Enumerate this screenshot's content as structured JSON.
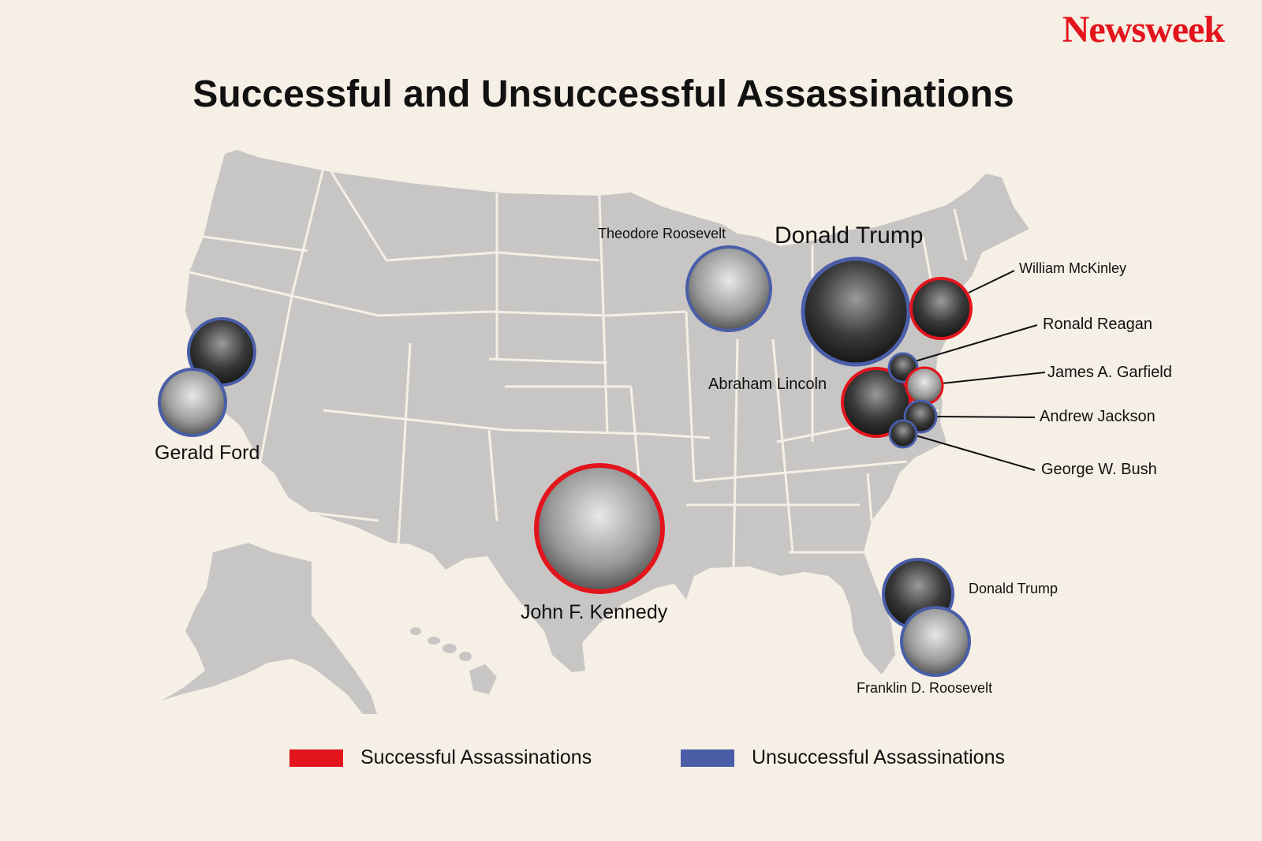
{
  "brand": "Newsweek",
  "title": "Successful and Unsuccessful Assassinations",
  "colors": {
    "background": "#f5efe5",
    "map_fill": "#c8c6c4",
    "state_border": "#f5efe5",
    "successful": "#e3141c",
    "unsuccessful": "#4a5ea8",
    "brand": "#e3141c"
  },
  "labels": {
    "gerald_ford": "Gerald Ford",
    "theodore_roosevelt": "Theodore Roosevelt",
    "donald_trump_pa": "Donald Trump",
    "abraham_lincoln": "Abraham Lincoln",
    "william_mckinley": "William McKinley",
    "ronald_reagan": "Ronald Reagan",
    "james_garfield": "James A. Garfield",
    "andrew_jackson": "Andrew Jackson",
    "george_bush": "George W. Bush",
    "john_kennedy": "John F. Kennedy",
    "donald_trump_fl": "Donald Trump",
    "franklin_roosevelt": "Franklin D. Roosevelt"
  },
  "markers": [
    {
      "person": "Gerald Ford",
      "status": "unsuccessful"
    },
    {
      "person": "Gerald Ford",
      "status": "unsuccessful"
    },
    {
      "person": "Theodore Roosevelt",
      "status": "unsuccessful"
    },
    {
      "person": "Donald Trump",
      "status": "unsuccessful"
    },
    {
      "person": "William McKinley",
      "status": "successful"
    },
    {
      "person": "Ronald Reagan",
      "status": "unsuccessful"
    },
    {
      "person": "Abraham Lincoln",
      "status": "successful"
    },
    {
      "person": "James A. Garfield",
      "status": "successful"
    },
    {
      "person": "Andrew Jackson",
      "status": "unsuccessful"
    },
    {
      "person": "George W. Bush",
      "status": "unsuccessful"
    },
    {
      "person": "John F. Kennedy",
      "status": "successful"
    },
    {
      "person": "Donald Trump",
      "status": "unsuccessful"
    },
    {
      "person": "Franklin D. Roosevelt",
      "status": "unsuccessful"
    }
  ],
  "legend": {
    "successful": "Successful Assassinations",
    "unsuccessful": "Unsuccessful Assassinations"
  }
}
